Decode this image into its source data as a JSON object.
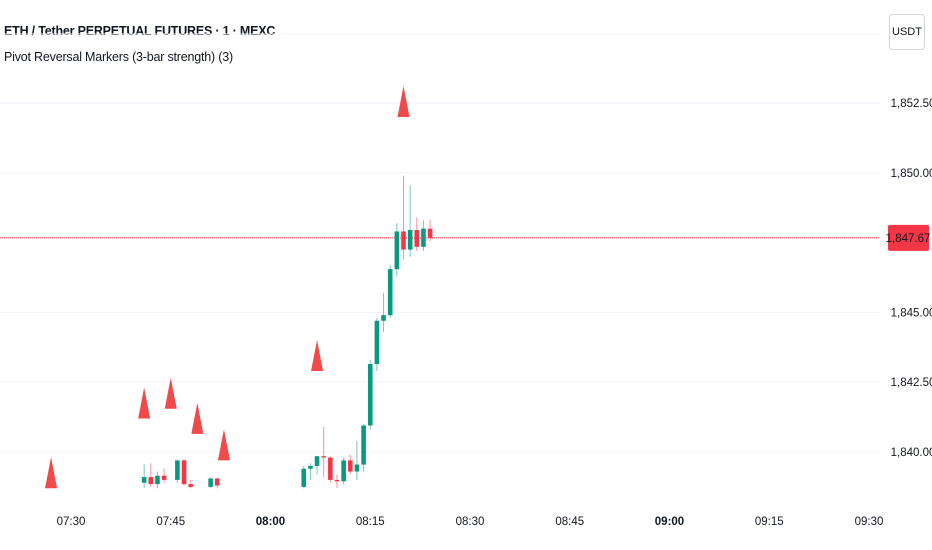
{
  "header": {
    "symbol_title": "ETH / Tether PERPETUAL FUTURES · 1 · MEXC",
    "indicator_label": "Pivot Reversal Markers (3-bar strength) (3)",
    "currency": "USDT"
  },
  "price_label": {
    "value": "1,847.67",
    "color": "#f23645"
  },
  "colors": {
    "up": "#089981",
    "down": "#f23645",
    "marker": "#f04a4a",
    "grid": "#f0f3fa"
  },
  "chart_data": {
    "type": "candlestick",
    "x_ticks": [
      {
        "label": "07:30",
        "t": 30,
        "bold": false
      },
      {
        "label": "07:45",
        "t": 45,
        "bold": false
      },
      {
        "label": "08:00",
        "t": 60,
        "bold": true
      },
      {
        "label": "08:15",
        "t": 75,
        "bold": false
      },
      {
        "label": "08:30",
        "t": 90,
        "bold": false
      },
      {
        "label": "08:45",
        "t": 105,
        "bold": false
      },
      {
        "label": "09:00",
        "t": 120,
        "bold": true
      },
      {
        "label": "09:15",
        "t": 135,
        "bold": false
      },
      {
        "label": "09:30",
        "t": 150,
        "bold": false
      }
    ],
    "y_ticks": [
      {
        "label": "1,852.50",
        "v": 1852.5
      },
      {
        "label": "1,850.00",
        "v": 1850.0
      },
      {
        "label": "1,845.00",
        "v": 1845.0
      },
      {
        "label": "1,842.50",
        "v": 1842.5
      },
      {
        "label": "1,840.00",
        "v": 1840.0
      }
    ],
    "ylim": [
      1838.6,
      1855.0
    ],
    "last_price": 1847.67,
    "candles": [
      {
        "t": 41,
        "o": 1838.9,
        "h": 1839.55,
        "l": 1838.7,
        "c": 1839.1
      },
      {
        "t": 42,
        "o": 1839.1,
        "h": 1839.6,
        "l": 1838.75,
        "c": 1838.85
      },
      {
        "t": 43,
        "o": 1838.85,
        "h": 1839.3,
        "l": 1838.7,
        "c": 1839.15
      },
      {
        "t": 44,
        "o": 1839.15,
        "h": 1839.4,
        "l": 1838.9,
        "c": 1839.0
      },
      {
        "t": 46,
        "o": 1839.0,
        "h": 1839.7,
        "l": 1838.9,
        "c": 1839.7
      },
      {
        "t": 47,
        "o": 1839.7,
        "h": 1839.75,
        "l": 1838.8,
        "c": 1838.85
      },
      {
        "t": 48,
        "o": 1838.85,
        "h": 1839.0,
        "l": 1838.7,
        "c": 1838.75
      },
      {
        "t": 51,
        "o": 1838.75,
        "h": 1839.1,
        "l": 1838.7,
        "c": 1839.05
      },
      {
        "t": 52,
        "o": 1839.05,
        "h": 1839.1,
        "l": 1838.7,
        "c": 1838.8
      },
      {
        "t": 65,
        "o": 1838.75,
        "h": 1839.5,
        "l": 1838.7,
        "c": 1839.4
      },
      {
        "t": 66,
        "o": 1839.4,
        "h": 1839.6,
        "l": 1839.0,
        "c": 1839.5
      },
      {
        "t": 67,
        "o": 1839.5,
        "h": 1839.85,
        "l": 1839.2,
        "c": 1839.85
      },
      {
        "t": 68,
        "o": 1839.85,
        "h": 1840.9,
        "l": 1839.1,
        "c": 1839.8
      },
      {
        "t": 69,
        "o": 1839.8,
        "h": 1839.85,
        "l": 1838.9,
        "c": 1839.0
      },
      {
        "t": 70,
        "o": 1839.0,
        "h": 1839.2,
        "l": 1838.7,
        "c": 1838.95
      },
      {
        "t": 71,
        "o": 1838.95,
        "h": 1839.8,
        "l": 1838.85,
        "c": 1839.7
      },
      {
        "t": 72,
        "o": 1839.7,
        "h": 1839.9,
        "l": 1839.2,
        "c": 1839.3
      },
      {
        "t": 73,
        "o": 1839.3,
        "h": 1840.4,
        "l": 1839.0,
        "c": 1839.55
      },
      {
        "t": 74,
        "o": 1839.55,
        "h": 1841.0,
        "l": 1839.3,
        "c": 1840.95
      },
      {
        "t": 75,
        "o": 1840.95,
        "h": 1843.3,
        "l": 1840.8,
        "c": 1843.15
      },
      {
        "t": 76,
        "o": 1843.15,
        "h": 1844.8,
        "l": 1842.9,
        "c": 1844.7
      },
      {
        "t": 77,
        "o": 1844.7,
        "h": 1845.7,
        "l": 1844.3,
        "c": 1844.9
      },
      {
        "t": 78,
        "o": 1844.9,
        "h": 1846.7,
        "l": 1844.8,
        "c": 1846.55
      },
      {
        "t": 79,
        "o": 1846.55,
        "h": 1848.2,
        "l": 1846.3,
        "c": 1847.9
      },
      {
        "t": 80,
        "o": 1847.9,
        "h": 1849.9,
        "l": 1846.9,
        "c": 1847.25
      },
      {
        "t": 81,
        "o": 1847.25,
        "h": 1849.55,
        "l": 1847.0,
        "c": 1847.95
      },
      {
        "t": 82,
        "o": 1847.95,
        "h": 1848.4,
        "l": 1847.2,
        "c": 1847.35
      },
      {
        "t": 83,
        "o": 1847.35,
        "h": 1848.3,
        "l": 1847.2,
        "c": 1848.0
      },
      {
        "t": 84,
        "o": 1848.0,
        "h": 1848.3,
        "l": 1847.55,
        "c": 1847.67
      }
    ],
    "markers": [
      {
        "t": 27,
        "price": 1838.7
      },
      {
        "t": 41,
        "price": 1841.2
      },
      {
        "t": 45,
        "price": 1841.55
      },
      {
        "t": 49,
        "price": 1840.65
      },
      {
        "t": 53,
        "price": 1839.7
      },
      {
        "t": 67,
        "price": 1842.9
      },
      {
        "t": 80,
        "price": 1852.0
      }
    ]
  }
}
